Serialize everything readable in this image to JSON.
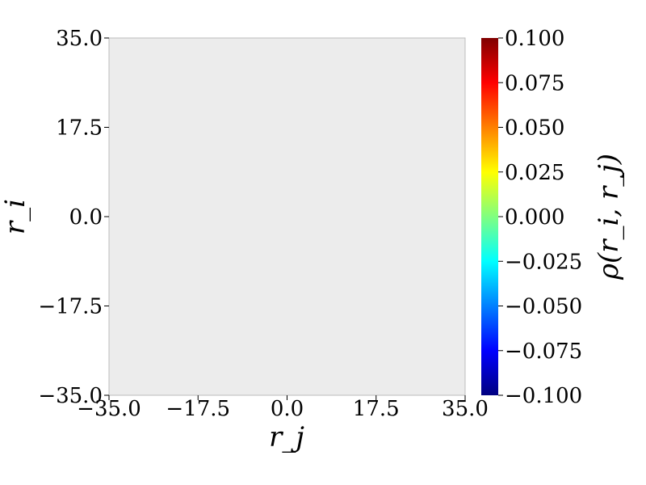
{
  "chart_data": {
    "type": "heatmap",
    "title": "",
    "xlabel": "r_j",
    "ylabel": "r_i",
    "xlim": [
      -35.0,
      35.0
    ],
    "ylim": [
      -35.0,
      35.0
    ],
    "x_ticks": [
      "−35.0",
      "−17.5",
      "0.0",
      "17.5",
      "35.0"
    ],
    "y_ticks": [
      "−35.0",
      "−17.5",
      "0.0",
      "17.5",
      "35.0"
    ],
    "x_tick_values": [
      -35.0,
      -17.5,
      0.0,
      17.5,
      35.0
    ],
    "y_tick_values": [
      -35.0,
      -17.5,
      0.0,
      17.5,
      35.0
    ],
    "plot_background": "#ececec",
    "grid": false,
    "values": [],
    "colorbar": {
      "label": "ρ(r_i, r_j)",
      "colormap": "jet",
      "range": [
        -0.1,
        0.1
      ],
      "ticks": [
        "0.100",
        "0.075",
        "0.050",
        "0.025",
        "0.000",
        "−0.025",
        "−0.050",
        "−0.075",
        "−0.100"
      ],
      "tick_values": [
        0.1,
        0.075,
        0.05,
        0.025,
        0.0,
        -0.025,
        -0.05,
        -0.075,
        -0.1
      ],
      "colors": [
        "#000080",
        "#0000ff",
        "#0080ff",
        "#00ffff",
        "#80ff80",
        "#ffff00",
        "#ff8000",
        "#ff0000",
        "#800000"
      ]
    }
  }
}
